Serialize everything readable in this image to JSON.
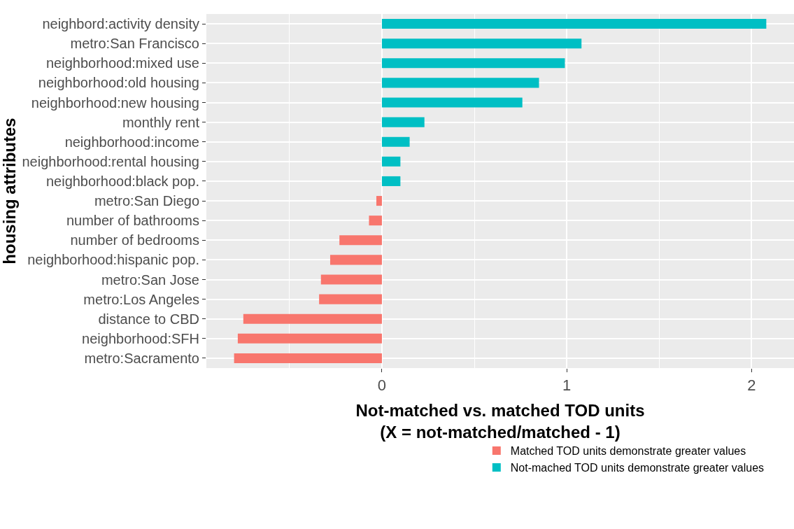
{
  "chart_data": {
    "type": "bar",
    "orientation": "horizontal",
    "ylabel": "housing attributes",
    "xlabel": "Not-matched vs. matched TOD units\n(X = not-matched/matched - 1)",
    "categories": [
      "neighbord:activity density",
      "metro:San Francisco",
      "neighborhood:mixed use",
      "neighborhood:old housing",
      "neighborhood:new housing",
      "monthly rent",
      "neighborhood:income",
      "neighborhood:rental housing",
      "neighborhood:black pop.",
      "metro:San Diego",
      "number of bathrooms",
      "number of bedrooms",
      "neighborhood:hispanic pop.",
      "metro:San Jose",
      "metro:Los Angeles",
      "distance to CBD",
      "neighborhood:SFH",
      "metro:Sacramento"
    ],
    "series": [
      {
        "name": "Matched TOD units demonstrate greater values",
        "color": "#f8766d",
        "values": [
          null,
          null,
          null,
          null,
          null,
          null,
          null,
          null,
          null,
          -0.03,
          -0.07,
          -0.23,
          -0.28,
          -0.33,
          -0.34,
          -0.75,
          -0.78,
          -0.8
        ]
      },
      {
        "name": "Not-mached TOD units demonstrate greater values",
        "color": "#00bfc4",
        "values": [
          2.08,
          1.08,
          0.99,
          0.85,
          0.76,
          0.23,
          0.15,
          0.1,
          0.1,
          null,
          null,
          null,
          null,
          null,
          null,
          null,
          null,
          null
        ]
      }
    ],
    "xlim": [
      -0.95,
      2.23
    ],
    "xticks": [
      0,
      1,
      2
    ],
    "grid": true,
    "legend": "bottom"
  }
}
